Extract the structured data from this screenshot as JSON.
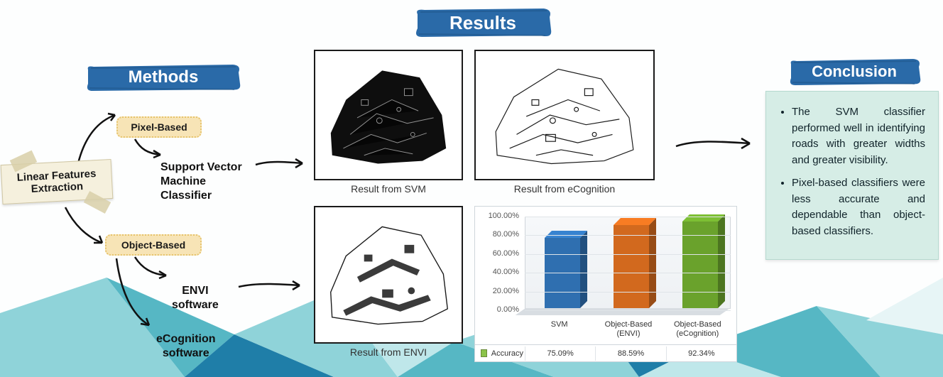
{
  "headers": {
    "methods": {
      "text": "Methods",
      "color": "#2a6aa8",
      "fontsize": 24
    },
    "results": {
      "text": "Results",
      "color": "#2a6aa8",
      "fontsize": 26
    },
    "conclusion": {
      "text": "Conclusion",
      "color": "#2a6aa8",
      "fontsize": 22
    }
  },
  "root_label": "Linear Features\nExtraction",
  "pills": {
    "pixel": "Pixel-Based",
    "object": "Object-Based"
  },
  "method_labels": {
    "svm": "Support Vector\nMachine\nClassifier",
    "envi": "ENVI\nsoftware",
    "ecog": "eCognition\nsoftware"
  },
  "captions": {
    "svm": "Result from SVM",
    "ecog": "Result from eCognition",
    "envi": "Result from ENVI"
  },
  "chart": {
    "type": "bar",
    "series_label": "Accuracy",
    "categories": [
      "SVM",
      "Object-Based (ENVI)",
      "Object-Based (eCognition)"
    ],
    "values": [
      75.09,
      88.59,
      92.34
    ],
    "value_labels": [
      "75.09%",
      "88.59%",
      "92.34%"
    ],
    "bar_colors": [
      "#2f6fb0",
      "#d2691e",
      "#6aa22c"
    ],
    "ymin": 0,
    "ymax": 100,
    "ytick_step": 20,
    "ytick_labels": [
      "0.00%",
      "20.00%",
      "40.00%",
      "60.00%",
      "80.00%",
      "100.00%"
    ],
    "ytick_fontsize": 11,
    "xcat_fontsize": 11,
    "background_color": "#ffffff",
    "grid_color": "#dfe4e8",
    "border_color": "#cfd6db",
    "legend_swatch_color": "#8bc34a"
  },
  "conclusion": {
    "bullets": [
      "The SVM classifier performed well in identifying roads with greater widths and greater visibility.",
      "Pixel-based classifiers were less accurate and dependable than object-based classifiers."
    ]
  },
  "palette": {
    "poly1": "#8fd3d9",
    "poly2": "#56b7c4",
    "poly3": "#1f7ea8",
    "poly4": "#0f4e78",
    "poly5": "#bfe7ea",
    "poly6": "#e7f5f6"
  }
}
